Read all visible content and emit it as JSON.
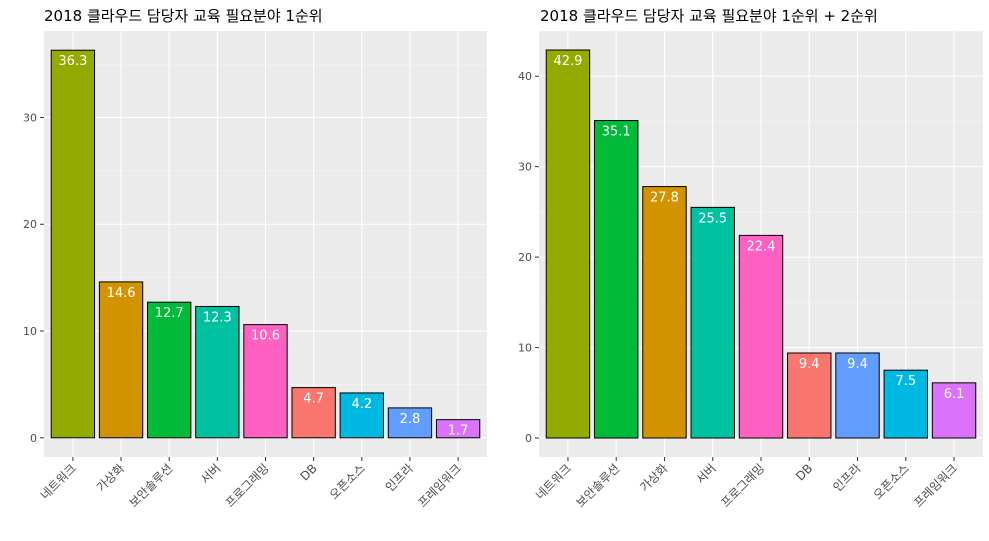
{
  "chart_data": [
    {
      "type": "bar",
      "title": "2018 클라우드 담당자 교육 필요분야 1순위",
      "categories": [
        "네트워크",
        "가상화",
        "보안솔루션",
        "서버",
        "프로그래밍",
        "DB",
        "오픈소스",
        "인프라",
        "프레임워크"
      ],
      "values": [
        36.3,
        14.6,
        12.7,
        12.3,
        10.6,
        4.7,
        4.2,
        2.8,
        1.7
      ],
      "data_labels": [
        "36.3",
        "14.6",
        "12.7",
        "12.3",
        "10.6",
        "4.7",
        "4.2",
        "2.8",
        "1.7"
      ],
      "colors": [
        "#93AA00",
        "#D39200",
        "#00BA38",
        "#00C19F",
        "#FF61C3",
        "#F8766D",
        "#00B9E3",
        "#619CFF",
        "#DB72FB"
      ],
      "ylim": [
        -1.8,
        38.1
      ],
      "yticks": [
        0,
        10,
        20,
        30
      ],
      "ytick_labels": [
        "0",
        "10",
        "20",
        "30"
      ],
      "xlabel": "",
      "ylabel": "",
      "grid": true
    },
    {
      "type": "bar",
      "title": "2018 클라우드 담당자 교육 필요분야 1순위 + 2순위",
      "categories": [
        "네트워크",
        "보안솔루션",
        "가상화",
        "서버",
        "프로그래밍",
        "DB",
        "인프라",
        "오픈소스",
        "프레임워크"
      ],
      "values": [
        42.9,
        35.1,
        27.8,
        25.5,
        22.4,
        9.4,
        9.4,
        7.5,
        6.1
      ],
      "data_labels": [
        "42.9",
        "35.1",
        "27.8",
        "25.5",
        "22.4",
        "9.4",
        "9.4",
        "7.5",
        "6.1"
      ],
      "colors": [
        "#93AA00",
        "#00BA38",
        "#D39200",
        "#00C19F",
        "#FF61C3",
        "#F8766D",
        "#619CFF",
        "#00B9E3",
        "#DB72FB"
      ],
      "ylim": [
        -2.1,
        45.0
      ],
      "yticks": [
        0,
        10,
        20,
        30,
        40
      ],
      "ytick_labels": [
        "0",
        "10",
        "20",
        "30",
        "40"
      ],
      "xlabel": "",
      "ylabel": "",
      "grid": true
    }
  ]
}
